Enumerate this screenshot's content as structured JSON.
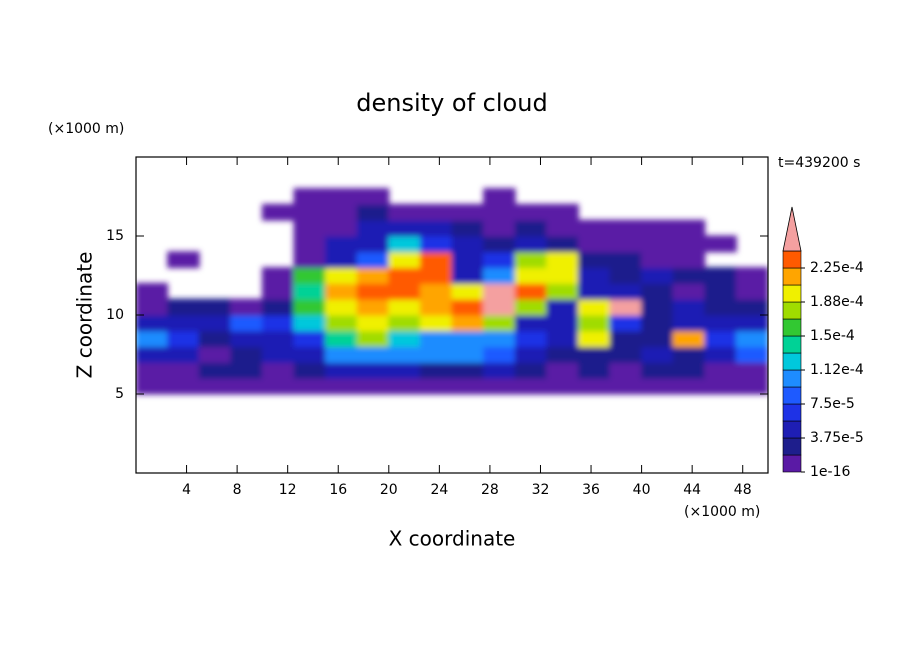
{
  "chart_data": {
    "type": "contour",
    "title": "density of cloud",
    "x_label": "X coordinate",
    "y_label": "Z coordinate",
    "x_unit": "(×1000 m)",
    "y_unit": "(×1000 m)",
    "time_label": "t=439200 s",
    "xbins": [
      0,
      2.5,
      5,
      7.5,
      10,
      12.5,
      15,
      17.5,
      20,
      22.5,
      25,
      27.5,
      30,
      32.5,
      35,
      37.5,
      40,
      42.5,
      45,
      47.5,
      50
    ],
    "ybins": [
      5,
      6,
      7,
      8,
      9,
      10,
      11,
      12,
      13,
      14,
      15,
      16,
      17,
      18
    ],
    "values": [
      [
        1e-05,
        1e-05,
        1e-05,
        1e-05,
        1e-05,
        1e-05,
        1e-05,
        1e-05,
        1e-05,
        1e-05,
        1e-05,
        1e-05,
        1e-05,
        1e-05,
        1e-05,
        1e-05,
        1e-05,
        1e-05,
        1e-05,
        1e-05
      ],
      [
        1e-05,
        1e-05,
        2.5e-05,
        2.5e-05,
        1e-05,
        2.5e-05,
        4e-05,
        5.5e-05,
        4e-05,
        2.5e-05,
        2.5e-05,
        4e-05,
        2.5e-05,
        1e-05,
        2.5e-05,
        1e-05,
        2.5e-05,
        2.5e-05,
        1e-05,
        1e-05
      ],
      [
        5.5e-05,
        4e-05,
        1e-05,
        2.5e-05,
        4e-05,
        5.5e-05,
        0.0001,
        0.0001,
        0.0001,
        0.0001,
        0.0001,
        8.5e-05,
        4e-05,
        2.5e-05,
        2.5e-05,
        2.5e-05,
        4e-05,
        2.5e-05,
        5.5e-05,
        8.5e-05
      ],
      [
        0.0001,
        7e-05,
        2.5e-05,
        4e-05,
        5.5e-05,
        7e-05,
        0.00014,
        0.00018,
        0.00012,
        0.0001,
        0.0001,
        0.0001,
        7e-05,
        5.5e-05,
        0.0002,
        2.5e-05,
        2.5e-05,
        0.00022,
        7e-05,
        0.0001
      ],
      [
        5.5e-05,
        4e-05,
        5.5e-05,
        8.5e-05,
        7e-05,
        0.00012,
        0.00018,
        0.0002,
        0.00018,
        0.0002,
        0.00022,
        0.00018,
        5.5e-05,
        4e-05,
        0.00018,
        7e-05,
        2.5e-05,
        4e-05,
        5.5e-05,
        4e-05
      ],
      [
        1e-05,
        2.5e-05,
        2.5e-05,
        1e-05,
        2.5e-05,
        0.00016,
        0.0002,
        0.00022,
        0.0002,
        0.00022,
        0.000235,
        0.00025,
        0.00018,
        5.5e-05,
        0.0002,
        0.00025,
        2.5e-05,
        4e-05,
        2.5e-05,
        2.5e-05
      ],
      [
        1e-05,
        null,
        null,
        null,
        1e-05,
        0.00014,
        0.00022,
        0.000235,
        0.000235,
        0.00022,
        0.0002,
        0.00025,
        0.000235,
        0.00018,
        4e-05,
        5.5e-05,
        2.5e-05,
        1e-05,
        2.5e-05,
        1e-05
      ],
      [
        null,
        null,
        null,
        null,
        1e-05,
        0.00016,
        0.0002,
        0.00022,
        0.000235,
        0.000235,
        5.5e-05,
        0.0001,
        0.0002,
        0.0002,
        4e-05,
        2.5e-05,
        4e-05,
        2.5e-05,
        2.5e-05,
        1e-05
      ],
      [
        null,
        1e-05,
        null,
        null,
        null,
        1e-05,
        4e-05,
        8.5e-05,
        0.0002,
        0.000235,
        4e-05,
        7e-05,
        0.00018,
        0.0002,
        2.5e-05,
        2.5e-05,
        1e-05,
        1e-05,
        null,
        null
      ],
      [
        null,
        null,
        null,
        null,
        null,
        1e-05,
        4e-05,
        5.5e-05,
        0.00012,
        7e-05,
        4e-05,
        2.5e-05,
        4e-05,
        2.5e-05,
        1e-05,
        1e-05,
        1e-05,
        1e-05,
        1e-05,
        null
      ],
      [
        null,
        null,
        null,
        null,
        null,
        1e-05,
        1e-05,
        4e-05,
        5.5e-05,
        4e-05,
        2.5e-05,
        1e-05,
        2.5e-05,
        1e-05,
        1e-05,
        1e-05,
        1e-05,
        1e-05,
        null,
        null
      ],
      [
        null,
        null,
        null,
        null,
        1e-05,
        1e-05,
        1e-05,
        2.5e-05,
        1e-05,
        1e-05,
        1e-05,
        1e-05,
        1e-05,
        1e-05,
        null,
        null,
        null,
        null,
        null,
        null
      ],
      [
        null,
        null,
        null,
        null,
        null,
        1e-05,
        1e-05,
        1e-05,
        null,
        null,
        null,
        1e-05,
        null,
        null,
        null,
        null,
        null,
        null,
        null,
        null
      ]
    ],
    "xlim": [
      0,
      50
    ],
    "ylim": [
      0,
      20
    ],
    "xticks": [
      4,
      8,
      12,
      16,
      20,
      24,
      28,
      32,
      36,
      40,
      44,
      48
    ],
    "yticks": [
      5,
      10,
      15
    ],
    "levels": [
      1e-16,
      1.875e-05,
      3.75e-05,
      5.625e-05,
      7.5e-05,
      9.375e-05,
      0.0001125,
      0.00013125,
      0.00015,
      0.00016875,
      0.0001875,
      0.00020625,
      0.000225,
      0.00024375
    ],
    "colors": [
      "#5a1aa5",
      "#1e1e8c",
      "#1e1eb4",
      "#1e32e6",
      "#1e5aff",
      "#1e8cff",
      "#00c8dc",
      "#00d296",
      "#32c832",
      "#a0dc00",
      "#f0f000",
      "#ffa500",
      "#ff5a00"
    ],
    "extend_color": "#f4a0a0",
    "colorbar_ticks": [
      1e-16,
      {
        "value": 3.75e-05,
        "label": "3.75e-5"
      },
      {
        "value": 7.5e-05,
        "label": "7.5e-5"
      },
      {
        "value": 0.0001125,
        "label": "1.12e-4"
      },
      {
        "value": 0.00015,
        "label": "1.5e-4"
      },
      {
        "value": 0.0001875,
        "label": "1.88e-4"
      },
      {
        "value": 0.000225,
        "label": "2.25e-4"
      }
    ]
  }
}
